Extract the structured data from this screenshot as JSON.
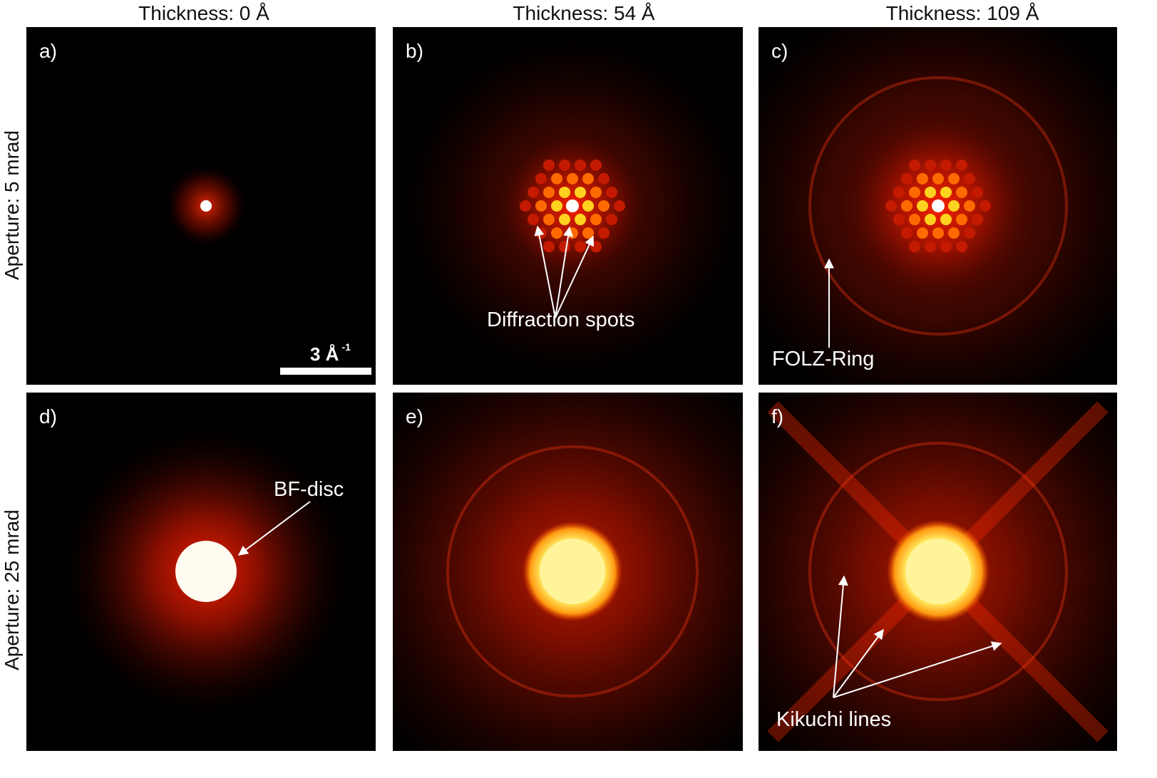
{
  "columns": [
    "Thickness: 0 Å",
    "Thickness: 54 Å",
    "Thickness: 109 Å"
  ],
  "rows": [
    "Aperture: 5 mrad",
    "Aperture: 25 mrad"
  ],
  "panels": [
    {
      "label": "a)"
    },
    {
      "label": "b)",
      "annotation": "Diffraction spots"
    },
    {
      "label": "c)",
      "annotation": "FOLZ-Ring"
    },
    {
      "label": "d)",
      "annotation": "BF-disc"
    },
    {
      "label": "e)"
    },
    {
      "label": "f)",
      "annotation": "Kikuchi lines"
    }
  ],
  "scalebar": {
    "value": "3 Å",
    "exponent": "-1"
  },
  "colors": {
    "background": "#000000",
    "glow": "#cc1a00",
    "hot": "#ffd21f",
    "white": "#ffffff"
  }
}
